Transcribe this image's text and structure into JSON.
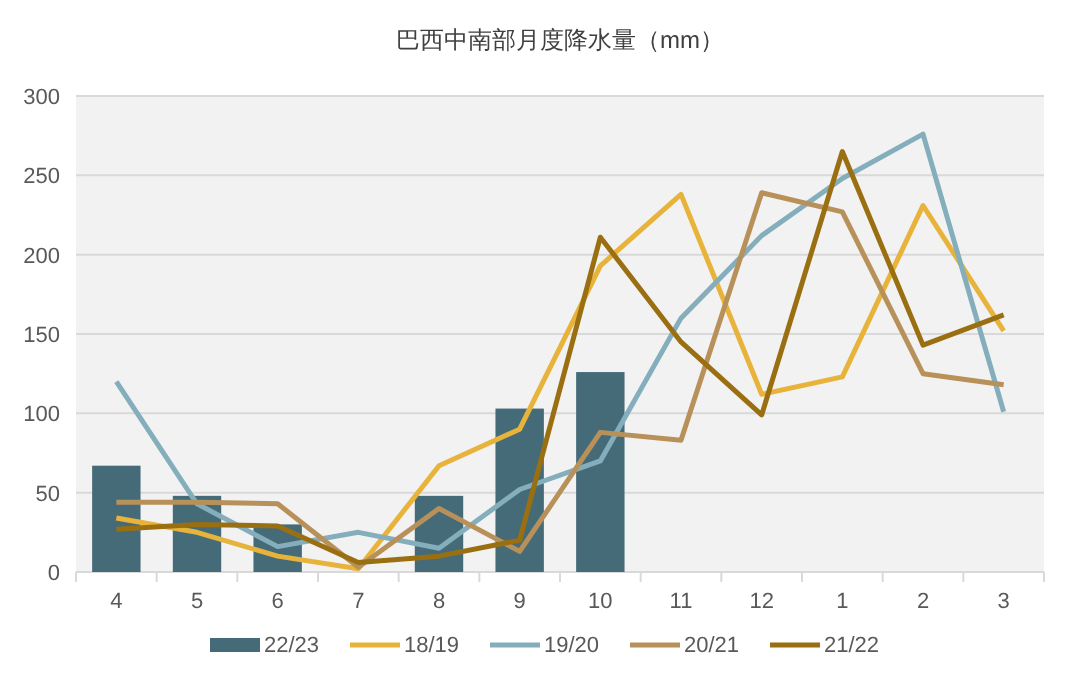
{
  "chart_data": {
    "type": "bar",
    "title": "巴西中南部月度降水量（mm）",
    "categories": [
      "4",
      "5",
      "6",
      "7",
      "8",
      "9",
      "10",
      "11",
      "12",
      "1",
      "2",
      "3"
    ],
    "series": [
      {
        "name": "22/23",
        "color": "#456b78",
        "values": [
          67,
          48,
          30,
          null,
          48,
          103,
          126,
          null,
          null,
          null,
          null,
          null
        ]
      },
      {
        "name": "18/19",
        "type": "line",
        "color": "#e8b33a",
        "values": [
          34,
          25,
          10,
          2,
          67,
          90,
          193,
          238,
          112,
          123,
          231,
          152
        ]
      },
      {
        "name": "19/20",
        "type": "line",
        "color": "#84aebc",
        "values": [
          120,
          43,
          16,
          25,
          15,
          52,
          70,
          160,
          212,
          248,
          276,
          101
        ]
      },
      {
        "name": "20/21",
        "type": "line",
        "color": "#b8915a",
        "values": [
          44,
          44,
          43,
          3,
          40,
          13,
          88,
          83,
          239,
          227,
          125,
          118
        ]
      },
      {
        "name": "21/22",
        "type": "line",
        "color": "#9a6f12",
        "values": [
          27,
          30,
          29,
          6,
          10,
          20,
          211,
          145,
          99,
          265,
          143,
          162
        ]
      }
    ],
    "ylim": [
      0,
      300
    ],
    "yticks": [
      0,
      50,
      100,
      150,
      200,
      250,
      300
    ],
    "grid": "y",
    "legend": "bottom"
  }
}
